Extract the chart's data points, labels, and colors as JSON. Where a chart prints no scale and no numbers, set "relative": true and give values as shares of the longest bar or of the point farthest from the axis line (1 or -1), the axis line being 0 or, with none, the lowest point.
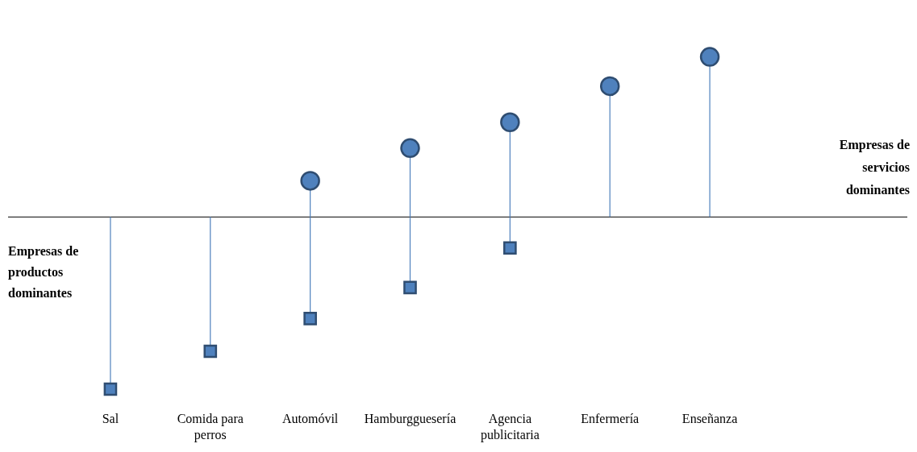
{
  "chart_data": {
    "type": "lollipop",
    "relative": true,
    "legend": false,
    "grid": false,
    "categories": [
      "Sal",
      "Comida para perros",
      "Automóvil",
      "Hamburgguesería",
      "Agencia publicitaria",
      "Enfermería",
      "Enseñanza"
    ],
    "series": [
      {
        "color": "#4f81bd",
        "marker": "square",
        "values": [
          -1,
          -0.78,
          -0.59,
          -0.41,
          -0.18,
          null,
          null
        ]
      },
      {
        "color": "#4f81bd",
        "marker": "circle",
        "values": [
          null,
          null,
          0.21,
          0.4,
          0.55,
          0.76,
          0.93
        ]
      }
    ],
    "annotations": [
      "Empresas de productos dominantes",
      "Empresas de servicios dominantes"
    ]
  }
}
